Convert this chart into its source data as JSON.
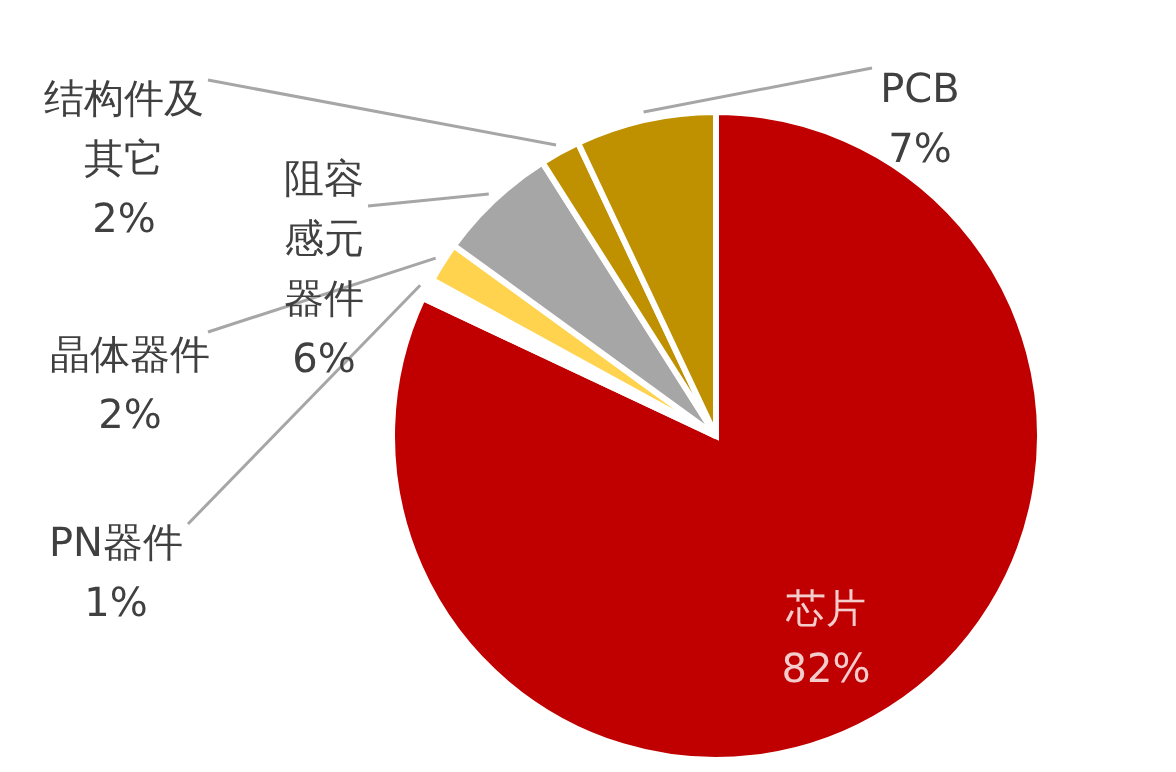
{
  "chart_data": {
    "type": "pie",
    "categories": [
      "芯片",
      "PN器件",
      "晶体器件",
      "阻容感元器件",
      "结构件及其它",
      "PCB"
    ],
    "values": [
      82,
      1,
      2,
      6,
      2,
      7
    ],
    "colors": [
      "#c00000",
      "#ffffff",
      "#ffd34d",
      "#a6a6a6",
      "#bf9000",
      "#bf9000"
    ],
    "value_labels": [
      "82%",
      "1%",
      "2%",
      "6%",
      "2%",
      "7%"
    ]
  }
}
